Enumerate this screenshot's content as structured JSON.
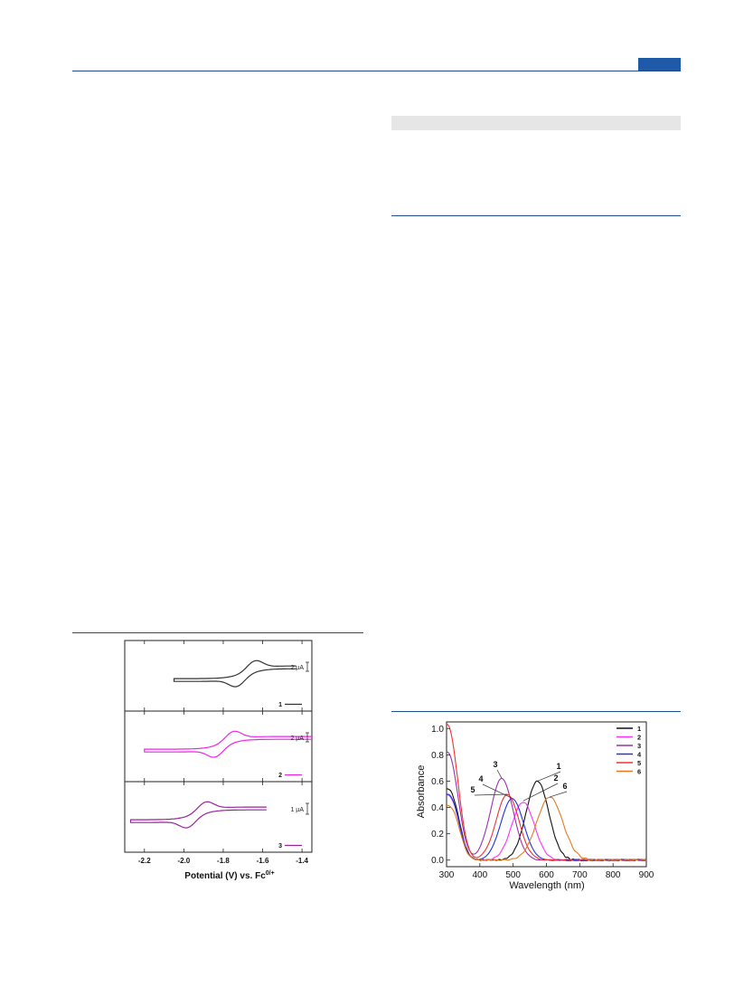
{
  "charts": {
    "cv": {
      "chart_data": {
        "type": "line",
        "xlabel": "Potential (V) vs. Fc",
        "xlabel_sup": "0/+",
        "xlim": [
          -2.3,
          -1.35
        ],
        "xticks": [
          -2.2,
          -2.0,
          -1.8,
          -1.6,
          -1.4
        ],
        "xtick_labels": [
          "-2.2",
          "-2.0",
          "-1.8",
          "-1.6",
          "-1.4"
        ],
        "panels": [
          {
            "name": "1",
            "scale_label": "2 µA",
            "color": "#333333",
            "e_half": -1.685,
            "x_start": -2.05,
            "x_end": -1.43
          },
          {
            "name": "2",
            "scale_label": "2 µA",
            "color": "#ee22ee",
            "e_half": -1.795,
            "x_start": -2.2,
            "x_end": -1.35
          },
          {
            "name": "3",
            "scale_label": "1 µA",
            "color": "#99229f",
            "e_half": -1.935,
            "x_start": -2.27,
            "x_end": -1.58
          }
        ]
      }
    },
    "uvvis": {
      "chart_data": {
        "type": "line",
        "xlabel": "Wavelength (nm)",
        "ylabel": "Absorbance",
        "xlim": [
          300,
          900
        ],
        "ylim": [
          -0.05,
          1.05
        ],
        "xticks": [
          300,
          400,
          500,
          600,
          700,
          800,
          900
        ],
        "yticks": [
          0.0,
          0.2,
          0.4,
          0.6,
          0.8,
          1.0
        ],
        "ytick_labels": [
          "0.0",
          "0.2",
          "0.4",
          "0.6",
          "0.8",
          "1.0"
        ],
        "legend_position": "top-right",
        "series": [
          {
            "name": "1",
            "color": "#111111",
            "peak_nm": 573,
            "peak_abs": 0.6,
            "uv_abs": 0.52,
            "onset_nm": 430
          },
          {
            "name": "2",
            "color": "#ff33ff",
            "peak_nm": 530,
            "peak_abs": 0.44,
            "uv_abs": 0.47,
            "onset_nm": 400
          },
          {
            "name": "3",
            "color": "#9933aa",
            "peak_nm": 466,
            "peak_abs": 0.62,
            "uv_abs": 0.8,
            "onset_nm": 395
          },
          {
            "name": "4",
            "color": "#2233dd",
            "peak_nm": 497,
            "peak_abs": 0.47,
            "uv_abs": 0.48,
            "onset_nm": 385
          },
          {
            "name": "5",
            "color": "#ee3333",
            "peak_nm": 483,
            "peak_abs": 0.5,
            "uv_abs": 1.01,
            "onset_nm": 380
          },
          {
            "name": "6",
            "color": "#e07b20",
            "peak_nm": 610,
            "peak_abs": 0.48,
            "uv_abs": 0.39,
            "onset_nm": 430
          }
        ],
        "annotations": [
          "1",
          "2",
          "3",
          "4",
          "5",
          "6"
        ]
      }
    }
  }
}
